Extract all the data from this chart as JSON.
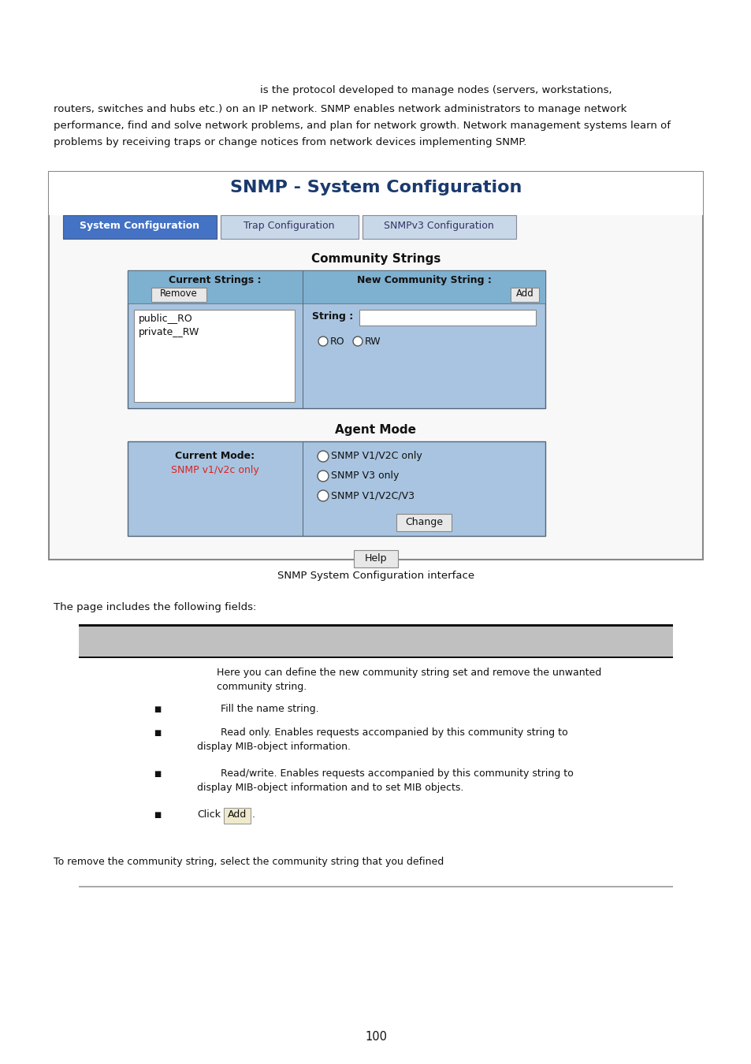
{
  "bg_color": "#ffffff",
  "page_number": "100",
  "intro_text_line1": "is the protocol developed to manage nodes (servers, workstations,",
  "intro_text_line2": "routers, switches and hubs etc.) on an IP network. SNMP enables network administrators to manage network",
  "intro_text_line3": "performance, find and solve network problems, and plan for network growth. Network management systems learn of",
  "intro_text_line4": "problems by receiving traps or change notices from network devices implementing SNMP.",
  "screenshot_title": "SNMP - System Configuration",
  "tab1": "System Configuration",
  "tab2": "Trap Configuration",
  "tab3": "SNMPv3 Configuration",
  "section1_title": "Community Strings",
  "col1_header": "Current Strings :",
  "col2_header": "New Community String :",
  "btn_remove": "Remove",
  "btn_add": "Add",
  "string_label": "String :",
  "radio_ro": "RO",
  "radio_rw": "RW",
  "section2_title": "Agent Mode",
  "current_mode_label": "Current Mode:",
  "current_mode_value": "SNMP v1/v2c only",
  "radio_opt1": "SNMP V1/V2C only",
  "radio_opt2": "SNMP V3 only",
  "radio_opt3": "SNMP V1/V2C/V3",
  "btn_change": "Change",
  "btn_help": "Help",
  "caption": "SNMP System Configuration interface",
  "fields_label": "The page includes the following fields:",
  "table_row1_text1": "Here you can define the new community string set and remove the unwanted",
  "table_row1_text2": "community string.",
  "bullet1": "Fill the name string.",
  "bullet2_line1": "Read only. Enables requests accompanied by this community string to",
  "bullet2_line2": "display MIB-object information.",
  "bullet3_line1": "Read/write. Enables requests accompanied by this community string to",
  "bullet3_line2": "display MIB-object information and to set MIB objects.",
  "bullet4_pre": "Click",
  "bullet4_btn": "Add",
  "bullet4_post": ".",
  "final_text": "To remove the community string, select the community string that you defined",
  "blue_tab_color": "#4472c4",
  "light_blue_bg": "#a8c4e0",
  "medium_blue_bg": "#7eb0d0",
  "dark_blue_title": "#1a3a6e",
  "red_text": "#dd2222",
  "tab_inactive_bg": "#c8d8e8",
  "tab_inactive_border": "#9aacbc"
}
